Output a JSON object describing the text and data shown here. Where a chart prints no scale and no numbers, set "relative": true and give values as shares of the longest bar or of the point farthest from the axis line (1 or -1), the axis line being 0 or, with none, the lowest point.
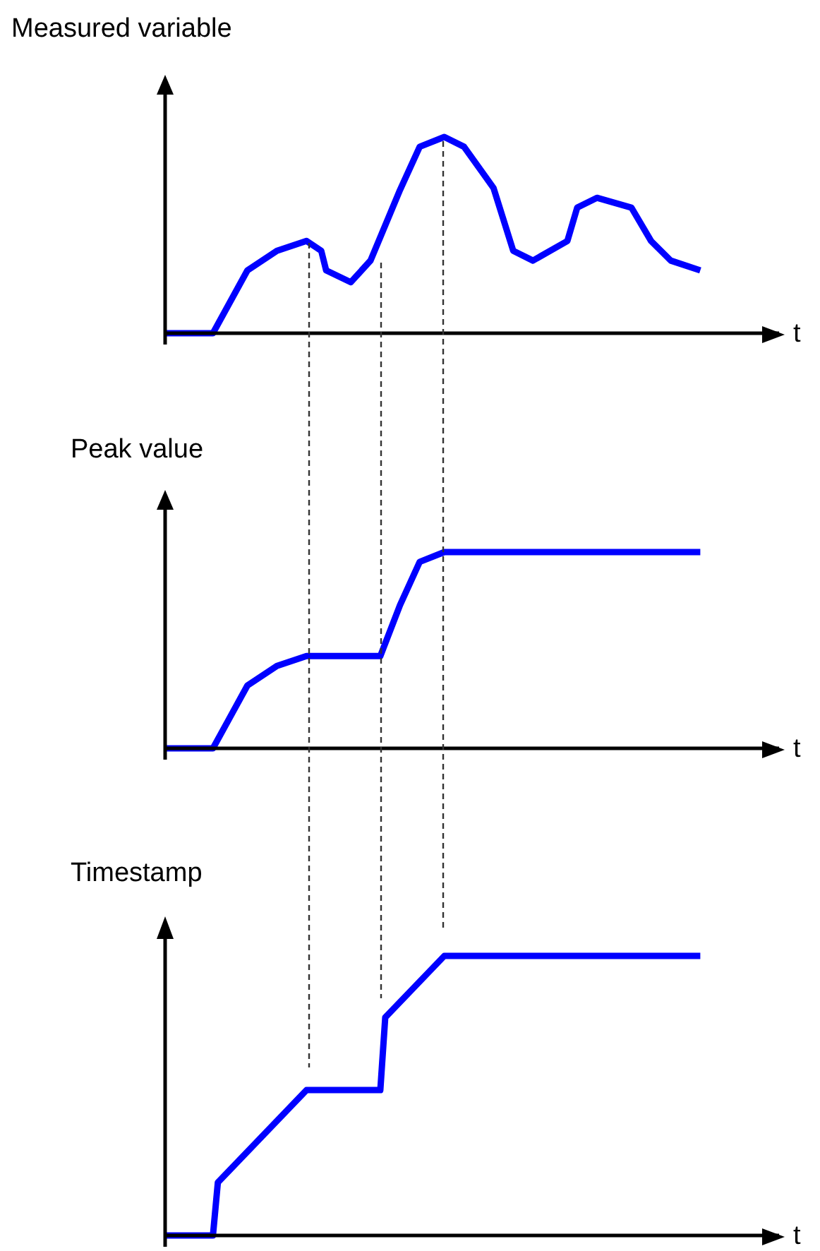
{
  "chart_data": [
    {
      "type": "line",
      "title": "Measured variable",
      "xlabel": "t",
      "relative": true,
      "categories": [
        null,
        null,
        null,
        null,
        null,
        null,
        null,
        null,
        null,
        null,
        null,
        null,
        null,
        null,
        null,
        null,
        null,
        null,
        null,
        null,
        null,
        null,
        null,
        null,
        null,
        null,
        null,
        null,
        null,
        null,
        null,
        null,
        null,
        null,
        null,
        null,
        null,
        null,
        null,
        null,
        null,
        null,
        null,
        null,
        null,
        null,
        null,
        null,
        null,
        null,
        null,
        null,
        null,
        null,
        null,
        null,
        null,
        null,
        null,
        null,
        null,
        null,
        null,
        null,
        null,
        null,
        null,
        null,
        null,
        null,
        null,
        null,
        null,
        null,
        null,
        null,
        null,
        null,
        null,
        null,
        null,
        null,
        null,
        null,
        null,
        null,
        null,
        null,
        null,
        null,
        null,
        null,
        null,
        null,
        null,
        null,
        null,
        null,
        null,
        null,
        null,
        null,
        null,
        null,
        null,
        null,
        null,
        null,
        null,
        null,
        null,
        null,
        null,
        null,
        null,
        null,
        null,
        null,
        null,
        null,
        null,
        null,
        null,
        null,
        null,
        null
      ],
      "series": [
        {
          "color": "#0000ff",
          "values": [
            0,
            null,
            null,
            null,
            null,
            null,
            null,
            null,
            null,
            null,
            0,
            null,
            null,
            null,
            null,
            null,
            null,
            0.32,
            null,
            null,
            null,
            null,
            null,
            0.42,
            null,
            null,
            null,
            null,
            null,
            0.47,
            null,
            null,
            0.42,
            0.32,
            null,
            null,
            null,
            null,
            0.26,
            null,
            null,
            null,
            0.37,
            null,
            null,
            null,
            null,
            null,
            0.73,
            null,
            null,
            null,
            0.95,
            null,
            null,
            null,
            null,
            1,
            null,
            null,
            null,
            0.95,
            null,
            null,
            null,
            null,
            null,
            0.74,
            null,
            null,
            null,
            0.42,
            null,
            null,
            null,
            0.37,
            null,
            null,
            null,
            null,
            null,
            null,
            0.47,
            null,
            0.64,
            null,
            null,
            null,
            0.69,
            null,
            null,
            null,
            null,
            null,
            null,
            0.64,
            null,
            null,
            null,
            0.47,
            null,
            null,
            null,
            0.37,
            null,
            null,
            null,
            null,
            null,
            0.32,
            null,
            null,
            null,
            null,
            null,
            null,
            null,
            null,
            null,
            null,
            null,
            null,
            null,
            null,
            null,
            null
          ]
        }
      ]
    },
    {
      "type": "line",
      "title": "Peak value",
      "xlabel": "t",
      "relative": true,
      "categories": [
        null,
        null,
        null,
        null,
        null,
        null,
        null,
        null,
        null,
        null,
        null,
        null,
        null,
        null,
        null,
        null,
        null,
        null,
        null,
        null,
        null,
        null,
        null,
        null,
        null,
        null,
        null,
        null,
        null,
        null,
        null,
        null,
        null,
        null,
        null,
        null,
        null,
        null,
        null,
        null,
        null,
        null,
        null,
        null,
        null,
        null,
        null,
        null,
        null,
        null,
        null,
        null,
        null,
        null,
        null,
        null,
        null,
        null,
        null,
        null,
        null,
        null,
        null,
        null,
        null,
        null,
        null,
        null,
        null,
        null,
        null,
        null,
        null,
        null,
        null,
        null,
        null,
        null,
        null,
        null,
        null,
        null,
        null,
        null,
        null,
        null,
        null,
        null,
        null,
        null,
        null,
        null,
        null,
        null,
        null,
        null,
        null,
        null,
        null,
        null,
        null,
        null,
        null,
        null,
        null,
        null,
        null,
        null,
        null,
        null,
        null,
        null,
        null,
        null,
        null,
        null,
        null,
        null,
        null,
        null,
        null,
        null,
        null,
        null,
        null,
        null
      ],
      "series": [
        {
          "color": "#0000ff",
          "values": [
            0,
            null,
            null,
            null,
            null,
            null,
            null,
            null,
            null,
            null,
            0,
            null,
            null,
            null,
            null,
            null,
            null,
            0.32,
            null,
            null,
            null,
            null,
            null,
            0.42,
            null,
            null,
            null,
            null,
            null,
            0.47,
            null,
            null,
            null,
            null,
            null,
            null,
            null,
            null,
            null,
            null,
            null,
            null,
            null,
            null,
            0.47,
            null,
            null,
            null,
            0.73,
            null,
            null,
            null,
            0.95,
            null,
            null,
            null,
            null,
            1,
            null,
            null,
            null,
            null,
            null,
            null,
            null,
            null,
            null,
            null,
            null,
            null,
            null,
            null,
            null,
            null,
            null,
            null,
            null,
            null,
            null,
            null,
            null,
            null,
            null,
            null,
            null,
            null,
            null,
            null,
            null,
            null,
            null,
            null,
            null,
            null,
            null,
            null,
            null,
            null,
            null,
            null,
            null,
            null,
            null,
            null,
            null,
            null,
            null,
            null,
            null,
            1,
            null,
            null,
            null,
            null,
            null,
            null,
            null,
            null,
            null,
            null,
            null,
            null,
            null,
            null,
            null,
            null
          ]
        }
      ]
    },
    {
      "type": "line",
      "title": "Timestamp",
      "xlabel": "t",
      "relative": true,
      "categories": [
        null,
        null,
        null,
        null,
        null,
        null,
        null,
        null,
        null,
        null,
        null,
        null,
        null,
        null,
        null,
        null,
        null,
        null,
        null,
        null,
        null,
        null,
        null,
        null,
        null,
        null,
        null,
        null,
        null,
        null,
        null,
        null,
        null,
        null,
        null,
        null,
        null,
        null,
        null,
        null,
        null,
        null,
        null,
        null,
        null,
        null,
        null,
        null,
        null,
        null,
        null,
        null,
        null,
        null,
        null,
        null,
        null,
        null,
        null,
        null,
        null,
        null,
        null,
        null,
        null,
        null,
        null,
        null,
        null,
        null,
        null,
        null,
        null,
        null,
        null,
        null,
        null,
        null,
        null,
        null,
        null,
        null,
        null,
        null,
        null,
        null,
        null,
        null,
        null,
        null,
        null,
        null,
        null,
        null,
        null,
        null,
        null,
        null,
        null,
        null,
        null,
        null,
        null,
        null,
        null,
        null,
        null,
        null,
        null,
        null,
        null,
        null,
        null,
        null,
        null,
        null,
        null,
        null,
        null,
        null,
        null,
        null,
        null,
        null,
        null,
        null
      ],
      "series": [
        {
          "color": "#0000ff",
          "values": [
            0,
            null,
            null,
            null,
            null,
            null,
            null,
            null,
            null,
            null,
            0,
            0.19,
            null,
            null,
            null,
            null,
            null,
            null,
            null,
            null,
            null,
            null,
            null,
            null,
            null,
            null,
            null,
            null,
            null,
            0.52,
            null,
            null,
            null,
            null,
            null,
            null,
            null,
            null,
            null,
            null,
            null,
            null,
            null,
            null,
            0.52,
            0.78,
            null,
            null,
            null,
            null,
            null,
            null,
            null,
            null,
            null,
            null,
            null,
            1,
            null,
            null,
            null,
            null,
            null,
            null,
            null,
            null,
            null,
            null,
            null,
            null,
            null,
            null,
            null,
            null,
            null,
            null,
            null,
            null,
            null,
            null,
            null,
            null,
            null,
            null,
            null,
            null,
            null,
            null,
            null,
            null,
            null,
            null,
            null,
            null,
            null,
            null,
            null,
            null,
            null,
            null,
            null,
            null,
            null,
            null,
            null,
            null,
            null,
            null,
            null,
            1,
            null,
            null,
            null,
            null,
            null,
            null,
            null,
            null,
            null,
            null,
            null,
            null,
            null,
            null,
            null,
            null
          ]
        }
      ]
    }
  ]
}
